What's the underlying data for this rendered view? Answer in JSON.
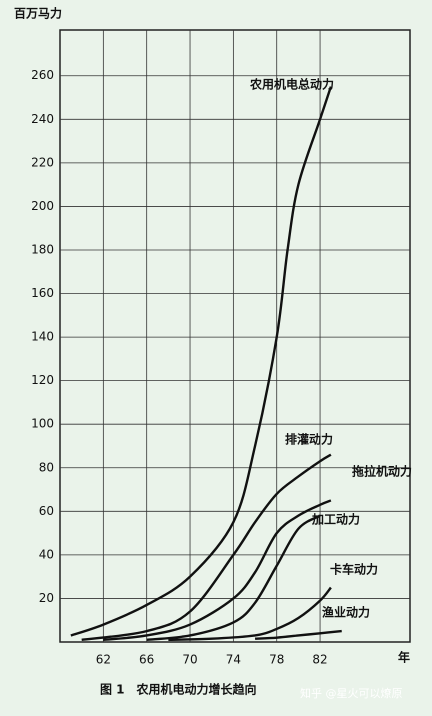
{
  "chart_data": {
    "type": "line",
    "y_label": "百万马力",
    "x_label": "年",
    "caption": "图 1　农用机电动力增长趋向",
    "watermark": "知乎 @星火可以燎原",
    "xlim": [
      58,
      90.3
    ],
    "ylim": [
      0,
      281
    ],
    "xticks": [
      62,
      66,
      70,
      74,
      78,
      82
    ],
    "yticks": [
      20,
      40,
      60,
      80,
      100,
      120,
      140,
      160,
      180,
      200,
      220,
      240,
      260
    ],
    "grid": true,
    "series": [
      {
        "name": "农用机电总动力",
        "color": "#111111",
        "x": [
          59,
          62,
          66,
          70,
          74,
          76,
          78,
          79,
          80,
          82,
          83
        ],
        "values": [
          3,
          8,
          17,
          30,
          55,
          90,
          140,
          180,
          210,
          240,
          255
        ]
      },
      {
        "name": "排灌动力",
        "color": "#111111",
        "x": [
          60,
          66,
          70,
          74,
          76,
          78,
          80,
          82,
          83
        ],
        "values": [
          1,
          5,
          14,
          40,
          55,
          68,
          76,
          83,
          86
        ]
      },
      {
        "name": "拖拉机动力",
        "color": "#111111",
        "x": [
          62,
          66,
          70,
          74,
          76,
          78,
          80,
          82,
          83
        ],
        "values": [
          1,
          3,
          8,
          20,
          32,
          50,
          58,
          63,
          65
        ]
      },
      {
        "name": "加工动力",
        "color": "#111111",
        "x": [
          66,
          70,
          74,
          76,
          78,
          80,
          82
        ],
        "values": [
          1,
          3,
          9,
          18,
          35,
          52,
          58
        ]
      },
      {
        "name": "卡车动力",
        "color": "#111111",
        "x": [
          68,
          72,
          76,
          78,
          80,
          82,
          83
        ],
        "values": [
          1,
          1.5,
          3,
          6,
          11,
          19,
          25
        ]
      },
      {
        "name": "渔业动力",
        "color": "#111111",
        "x": [
          76,
          78,
          80,
          82,
          84
        ],
        "values": [
          1.5,
          2,
          3,
          4,
          5
        ]
      }
    ]
  }
}
